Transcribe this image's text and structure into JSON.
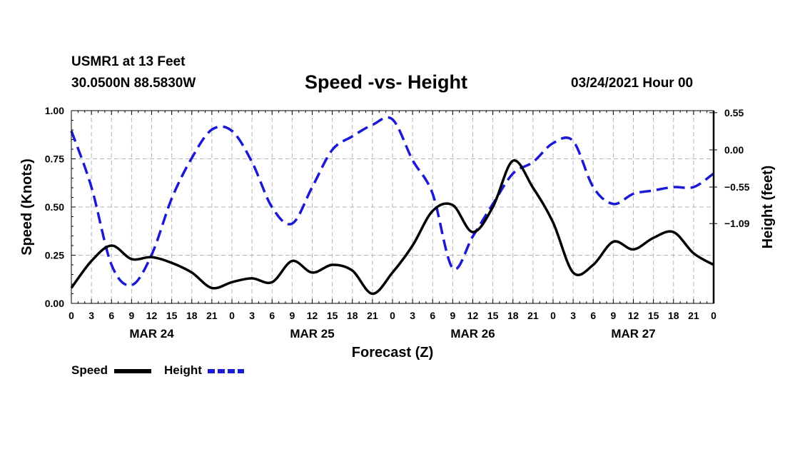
{
  "header": {
    "station": "USMR1 at 13 Feet",
    "coords": "30.0500N 88.5830W",
    "title": "Speed -vs- Height",
    "stamp": "03/24/2021 Hour 00"
  },
  "chart_data": {
    "type": "line",
    "title": "Speed -vs- Height",
    "xlabel": "Forecast (Z)",
    "ylabel_left": "Speed (Knots)",
    "ylabel_right": "Height (feet)",
    "x_range": [
      0,
      96
    ],
    "x_tick_labels": [
      "0",
      "3",
      "6",
      "9",
      "12",
      "15",
      "18",
      "21",
      "0",
      "3",
      "6",
      "9",
      "12",
      "15",
      "18",
      "21",
      "0",
      "3",
      "6",
      "9",
      "12",
      "15",
      "18",
      "21",
      "0",
      "3",
      "6",
      "9",
      "12",
      "15",
      "18",
      "21",
      "0"
    ],
    "day_labels": [
      {
        "label": "MAR 24",
        "center_hour": 12
      },
      {
        "label": "MAR 25",
        "center_hour": 36
      },
      {
        "label": "MAR 26",
        "center_hour": 60
      },
      {
        "label": "MAR 27",
        "center_hour": 84
      }
    ],
    "left_axis": {
      "min": 0,
      "max": 1,
      "ticks": [
        0,
        0.25,
        0.5,
        0.75,
        1
      ],
      "tick_labels": [
        "0.00",
        "0.25",
        "0.50",
        "0.75",
        "1.00"
      ]
    },
    "right_axis": {
      "min": -2.27,
      "max": 0.58,
      "ticks": [
        0.55,
        0.0,
        -0.55,
        -1.09
      ],
      "tick_labels": [
        "0.55",
        "0.00",
        "−0.55",
        "−1.09"
      ]
    },
    "grid": true,
    "legend_position": "bottom-left",
    "series": [
      {
        "name": "Speed",
        "axis": "left",
        "color": "#000000",
        "dashed": false,
        "x": [
          0,
          3,
          6,
          9,
          12,
          15,
          18,
          21,
          24,
          27,
          30,
          33,
          36,
          39,
          42,
          45,
          48,
          51,
          54,
          57,
          60,
          63,
          66,
          69,
          72,
          75,
          78,
          81,
          84,
          87,
          90,
          93,
          96
        ],
        "values": [
          0.08,
          0.22,
          0.3,
          0.23,
          0.24,
          0.21,
          0.16,
          0.08,
          0.11,
          0.13,
          0.11,
          0.22,
          0.16,
          0.2,
          0.17,
          0.05,
          0.16,
          0.3,
          0.48,
          0.51,
          0.37,
          0.5,
          0.74,
          0.6,
          0.42,
          0.16,
          0.2,
          0.32,
          0.28,
          0.34,
          0.37,
          0.26,
          0.2
        ]
      },
      {
        "name": "Height",
        "axis": "right",
        "color": "#1a1ad4",
        "dashed": true,
        "x": [
          0,
          3,
          6,
          9,
          12,
          15,
          18,
          21,
          24,
          27,
          30,
          33,
          36,
          39,
          42,
          45,
          48,
          51,
          54,
          57,
          60,
          63,
          66,
          69,
          72,
          75,
          78,
          81,
          84,
          87,
          90,
          93,
          96
        ],
        "values": [
          0.28,
          -0.55,
          -1.7,
          -2.0,
          -1.55,
          -0.72,
          -0.12,
          0.3,
          0.28,
          -0.18,
          -0.85,
          -1.09,
          -0.55,
          0.0,
          0.2,
          0.37,
          0.45,
          -0.15,
          -0.65,
          -1.75,
          -1.28,
          -0.8,
          -0.35,
          -0.18,
          0.1,
          0.13,
          -0.55,
          -0.8,
          -0.65,
          -0.6,
          -0.55,
          -0.55,
          -0.35
        ]
      }
    ]
  }
}
